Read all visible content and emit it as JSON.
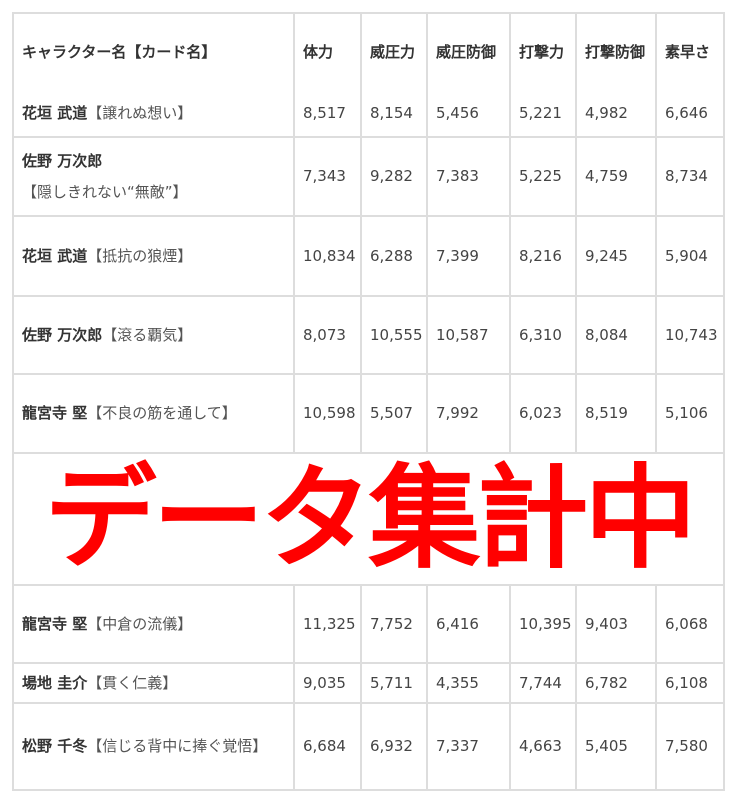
{
  "table": {
    "headers": [
      "キャラクター名【カード名】",
      "体力",
      "威圧力",
      "威圧防御",
      "打撃力",
      "打撃防御",
      "素早さ"
    ],
    "rows": [
      {
        "name": "花垣 武道",
        "card": "【譲れぬ想い】",
        "values": [
          "8,517",
          "8,154",
          "5,456",
          "5,221",
          "4,982",
          "6,646"
        ]
      },
      {
        "name": "佐野 万次郎",
        "card": "【隠しきれない“無敵”】",
        "values": [
          "7,343",
          "9,282",
          "7,383",
          "5,225",
          "4,759",
          "8,734"
        ]
      },
      {
        "name": "花垣 武道",
        "card": "【抵抗の狼煙】",
        "values": [
          "10,834",
          "6,288",
          "7,399",
          "8,216",
          "9,245",
          "5,904"
        ]
      },
      {
        "name": "佐野 万次郎",
        "card": "【滾る覇気】",
        "values": [
          "8,073",
          "10,555",
          "10,587",
          "6,310",
          "8,084",
          "10,743"
        ]
      },
      {
        "name": "龍宮寺 堅",
        "card": "【不良の筋を通して】",
        "values": [
          "10,598",
          "5,507",
          "7,992",
          "6,023",
          "8,519",
          "5,106"
        ]
      },
      {
        "name": "龍宮寺 堅",
        "card": "【中倉の流儀】",
        "values": [
          "11,325",
          "7,752",
          "6,416",
          "10,395",
          "9,403",
          "6,068"
        ]
      },
      {
        "name": "場地 圭介",
        "card": "【貫く仁義】",
        "values": [
          "9,035",
          "5,711",
          "4,355",
          "7,744",
          "6,782",
          "6,108"
        ]
      },
      {
        "name": "松野 千冬",
        "card": "【信じる背中に捧ぐ覚悟】",
        "values": [
          "6,684",
          "6,932",
          "7,337",
          "4,663",
          "5,405",
          "7,580"
        ]
      }
    ]
  },
  "overlay": {
    "text": "データ集計中",
    "color": "#ff0000"
  }
}
